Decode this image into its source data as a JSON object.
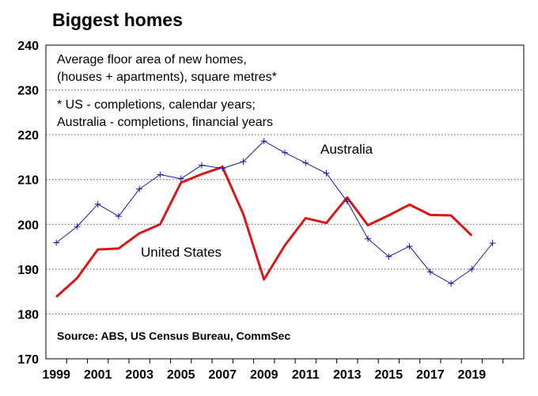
{
  "chart_data": {
    "type": "line",
    "title": "Biggest homes",
    "subtitle_lines": [
      "Average floor area of new homes,",
      "(houses + apartments), square metres*"
    ],
    "footnote_lines": [
      "* US - completions, calendar years;",
      "Australia - completions, financial years"
    ],
    "source": "Source: ABS, US Census Bureau, CommSec",
    "xlabel": "",
    "ylabel": "",
    "ylim": [
      170,
      240
    ],
    "y_ticks": [
      170,
      180,
      190,
      200,
      210,
      220,
      230,
      240
    ],
    "xlim": [
      1998.5,
      2021.5
    ],
    "x_ticks": [
      1999,
      2001,
      2003,
      2005,
      2007,
      2009,
      2011,
      2013,
      2015,
      2017,
      2019
    ],
    "grid": true,
    "series": [
      {
        "name": "Australia",
        "color": "#1a1aa8",
        "marker": "plus",
        "x": [
          1999,
          2000,
          2001,
          2002,
          2003,
          2004,
          2005,
          2006,
          2007,
          2008,
          2009,
          2010,
          2011,
          2012,
          2013,
          2014,
          2015,
          2016,
          2017,
          2018,
          2019,
          2020
        ],
        "values": [
          195.9,
          199.5,
          204.5,
          201.8,
          207.9,
          211.1,
          210.2,
          213.2,
          212.5,
          214.0,
          218.6,
          216.0,
          213.7,
          211.4,
          205.1,
          196.8,
          192.8,
          195.1,
          189.4,
          186.8,
          190.0,
          195.8
        ]
      },
      {
        "name": "United States",
        "color": "#d81818",
        "marker": "none",
        "x": [
          1999,
          2000,
          2001,
          2002,
          2003,
          2004,
          2005,
          2006,
          2007,
          2008,
          2009,
          2010,
          2011,
          2012,
          2013,
          2014,
          2015,
          2016,
          2017,
          2018,
          2019
        ],
        "values": [
          183.8,
          188.0,
          194.4,
          194.6,
          198.0,
          200.0,
          209.3,
          211.2,
          212.8,
          202.3,
          187.7,
          195.3,
          201.4,
          200.3,
          206.0,
          199.8,
          202.0,
          204.4,
          202.1,
          202.0,
          197.5
        ]
      }
    ]
  }
}
